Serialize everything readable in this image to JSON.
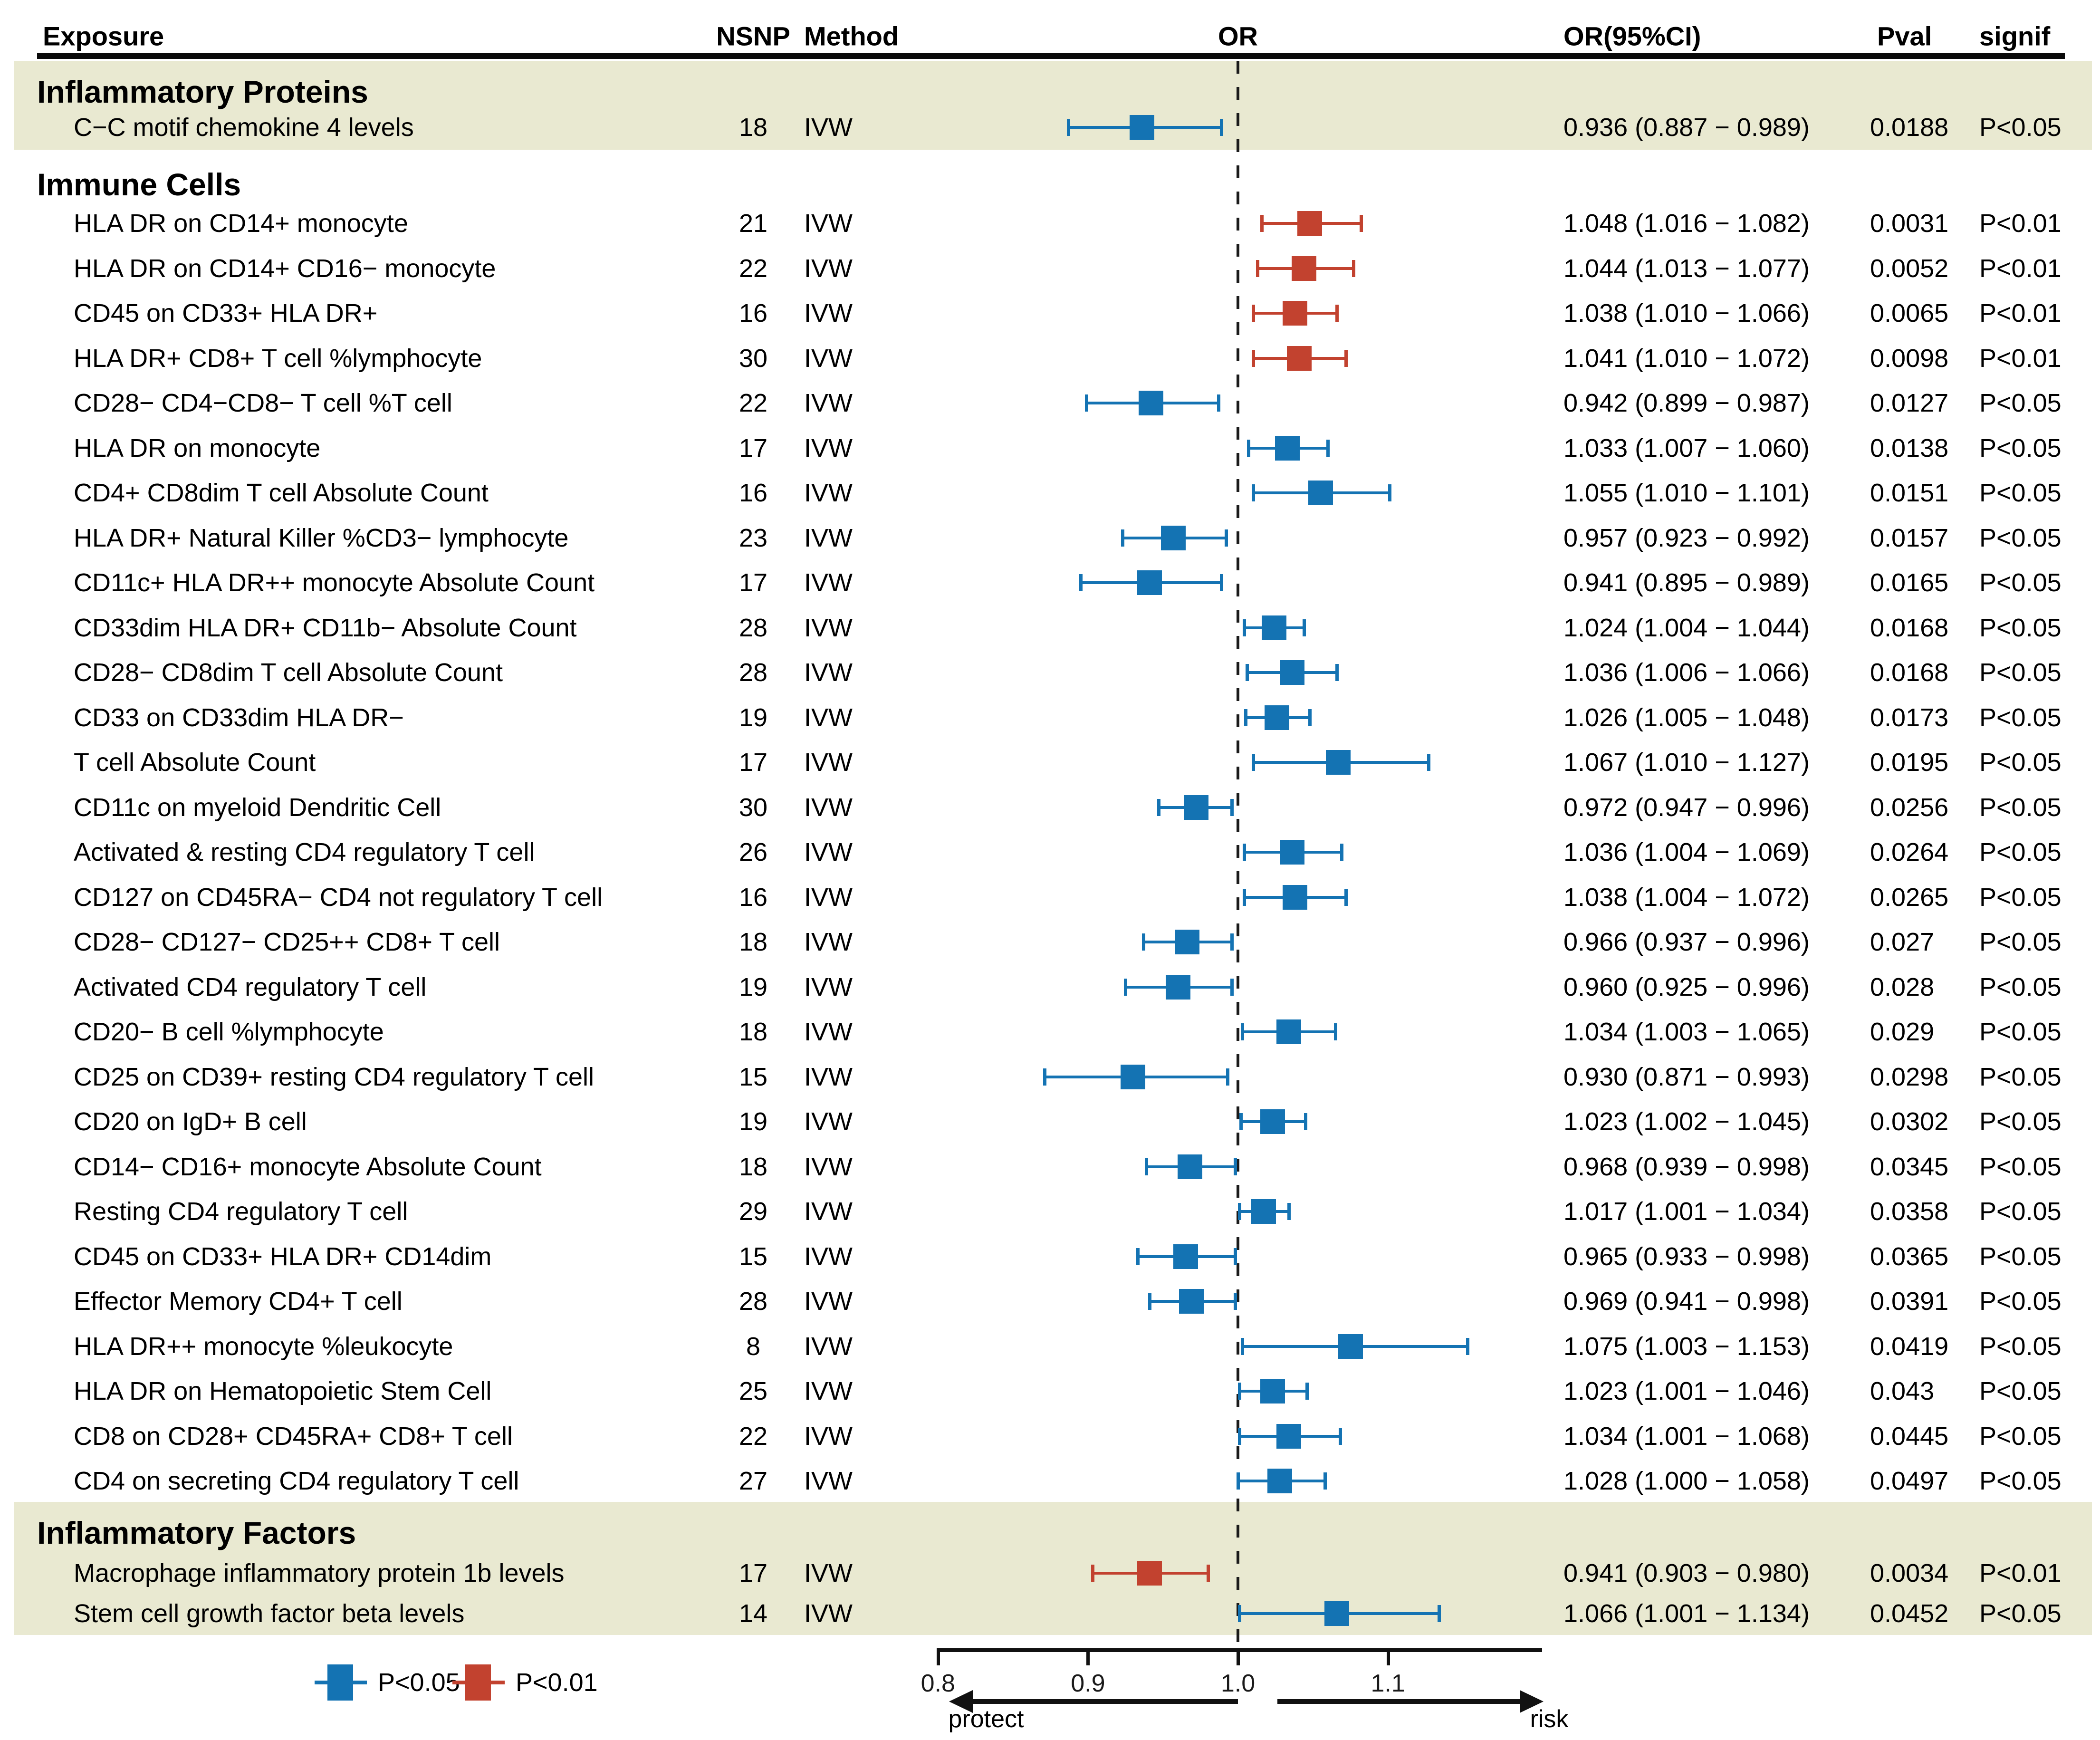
{
  "header": {
    "exposure": "Exposure",
    "nsnp": "NSNP",
    "method": "Method",
    "or": "OR",
    "or_ci": "OR(95%CI)",
    "pval": "Pval",
    "signif": "signif"
  },
  "legend": {
    "items": [
      {
        "label": "P<0.05",
        "color_key": "p05"
      },
      {
        "label": "P<0.01",
        "color_key": "p01"
      }
    ]
  },
  "colors": {
    "band": "#e9e9d1",
    "p05": "#1473b3",
    "p01": "#c2422f",
    "text": "#000000"
  },
  "chart_data": {
    "type": "scatter",
    "variant": "forest-plot",
    "x_axis": {
      "ticks": [
        0.8,
        0.9,
        1.0,
        1.1
      ],
      "tick_labels": [
        "0.8",
        "0.9",
        "1.0",
        "1.1"
      ],
      "reference_line": 1.0,
      "left_label": "protect",
      "right_label": "risk"
    },
    "sections": [
      {
        "title": "Inflammatory Proteins",
        "rows": [
          {
            "exposure": "C−C motif chemokine 4 levels",
            "nsnp": "18",
            "method": "IVW",
            "or": 0.936,
            "ci_low": 0.887,
            "ci_high": 0.989,
            "or_ci": "0.936 (0.887 − 0.989)",
            "pval": "0.0188",
            "signif": "P<0.05",
            "level": "p05"
          }
        ]
      },
      {
        "title": "Immune Cells",
        "rows": [
          {
            "exposure": "HLA DR on CD14+ monocyte",
            "nsnp": "21",
            "method": "IVW",
            "or": 1.048,
            "ci_low": 1.016,
            "ci_high": 1.082,
            "or_ci": "1.048 (1.016 − 1.082)",
            "pval": "0.0031",
            "signif": "P<0.01",
            "level": "p01"
          },
          {
            "exposure": "HLA DR on CD14+ CD16− monocyte",
            "nsnp": "22",
            "method": "IVW",
            "or": 1.044,
            "ci_low": 1.013,
            "ci_high": 1.077,
            "or_ci": "1.044 (1.013 − 1.077)",
            "pval": "0.0052",
            "signif": "P<0.01",
            "level": "p01"
          },
          {
            "exposure": "CD45 on CD33+ HLA DR+",
            "nsnp": "16",
            "method": "IVW",
            "or": 1.038,
            "ci_low": 1.01,
            "ci_high": 1.066,
            "or_ci": "1.038 (1.010 − 1.066)",
            "pval": "0.0065",
            "signif": "P<0.01",
            "level": "p01"
          },
          {
            "exposure": "HLA DR+ CD8+ T cell %lymphocyte",
            "nsnp": "30",
            "method": "IVW",
            "or": 1.041,
            "ci_low": 1.01,
            "ci_high": 1.072,
            "or_ci": "1.041 (1.010 − 1.072)",
            "pval": "0.0098",
            "signif": "P<0.01",
            "level": "p01"
          },
          {
            "exposure": "CD28− CD4−CD8− T cell %T cell",
            "nsnp": "22",
            "method": "IVW",
            "or": 0.942,
            "ci_low": 0.899,
            "ci_high": 0.987,
            "or_ci": "0.942 (0.899 − 0.987)",
            "pval": "0.0127",
            "signif": "P<0.05",
            "level": "p05"
          },
          {
            "exposure": "HLA DR on monocyte",
            "nsnp": "17",
            "method": "IVW",
            "or": 1.033,
            "ci_low": 1.007,
            "ci_high": 1.06,
            "or_ci": "1.033 (1.007 − 1.060)",
            "pval": "0.0138",
            "signif": "P<0.05",
            "level": "p05"
          },
          {
            "exposure": "CD4+ CD8dim T cell Absolute Count",
            "nsnp": "16",
            "method": "IVW",
            "or": 1.055,
            "ci_low": 1.01,
            "ci_high": 1.101,
            "or_ci": "1.055 (1.010 − 1.101)",
            "pval": "0.0151",
            "signif": "P<0.05",
            "level": "p05"
          },
          {
            "exposure": "HLA DR+ Natural Killer %CD3− lymphocyte",
            "nsnp": "23",
            "method": "IVW",
            "or": 0.957,
            "ci_low": 0.923,
            "ci_high": 0.992,
            "or_ci": "0.957 (0.923 − 0.992)",
            "pval": "0.0157",
            "signif": "P<0.05",
            "level": "p05"
          },
          {
            "exposure": "CD11c+ HLA DR++ monocyte Absolute Count",
            "nsnp": "17",
            "method": "IVW",
            "or": 0.941,
            "ci_low": 0.895,
            "ci_high": 0.989,
            "or_ci": "0.941 (0.895 − 0.989)",
            "pval": "0.0165",
            "signif": "P<0.05",
            "level": "p05"
          },
          {
            "exposure": "CD33dim HLA DR+ CD11b− Absolute Count",
            "nsnp": "28",
            "method": "IVW",
            "or": 1.024,
            "ci_low": 1.004,
            "ci_high": 1.044,
            "or_ci": "1.024 (1.004 − 1.044)",
            "pval": "0.0168",
            "signif": "P<0.05",
            "level": "p05"
          },
          {
            "exposure": "CD28− CD8dim T cell Absolute Count",
            "nsnp": "28",
            "method": "IVW",
            "or": 1.036,
            "ci_low": 1.006,
            "ci_high": 1.066,
            "or_ci": "1.036 (1.006 − 1.066)",
            "pval": "0.0168",
            "signif": "P<0.05",
            "level": "p05"
          },
          {
            "exposure": "CD33 on CD33dim HLA DR−",
            "nsnp": "19",
            "method": "IVW",
            "or": 1.026,
            "ci_low": 1.005,
            "ci_high": 1.048,
            "or_ci": "1.026 (1.005 − 1.048)",
            "pval": "0.0173",
            "signif": "P<0.05",
            "level": "p05"
          },
          {
            "exposure": "T cell Absolute Count",
            "nsnp": "17",
            "method": "IVW",
            "or": 1.067,
            "ci_low": 1.01,
            "ci_high": 1.127,
            "or_ci": "1.067 (1.010 − 1.127)",
            "pval": "0.0195",
            "signif": "P<0.05",
            "level": "p05"
          },
          {
            "exposure": "CD11c on myeloid Dendritic Cell",
            "nsnp": "30",
            "method": "IVW",
            "or": 0.972,
            "ci_low": 0.947,
            "ci_high": 0.996,
            "or_ci": "0.972 (0.947 − 0.996)",
            "pval": "0.0256",
            "signif": "P<0.05",
            "level": "p05"
          },
          {
            "exposure": "Activated & resting CD4 regulatory T cell",
            "nsnp": "26",
            "method": "IVW",
            "or": 1.036,
            "ci_low": 1.004,
            "ci_high": 1.069,
            "or_ci": "1.036 (1.004 − 1.069)",
            "pval": "0.0264",
            "signif": "P<0.05",
            "level": "p05"
          },
          {
            "exposure": "CD127 on CD45RA− CD4 not regulatory T cell",
            "nsnp": "16",
            "method": "IVW",
            "or": 1.038,
            "ci_low": 1.004,
            "ci_high": 1.072,
            "or_ci": "1.038 (1.004 − 1.072)",
            "pval": "0.0265",
            "signif": "P<0.05",
            "level": "p05"
          },
          {
            "exposure": "CD28− CD127− CD25++ CD8+ T cell",
            "nsnp": "18",
            "method": "IVW",
            "or": 0.966,
            "ci_low": 0.937,
            "ci_high": 0.996,
            "or_ci": "0.966 (0.937 − 0.996)",
            "pval": "0.027",
            "signif": "P<0.05",
            "level": "p05"
          },
          {
            "exposure": "Activated CD4 regulatory T cell",
            "nsnp": "19",
            "method": "IVW",
            "or": 0.96,
            "ci_low": 0.925,
            "ci_high": 0.996,
            "or_ci": "0.960 (0.925 − 0.996)",
            "pval": "0.028",
            "signif": "P<0.05",
            "level": "p05"
          },
          {
            "exposure": "CD20− B cell %lymphocyte",
            "nsnp": "18",
            "method": "IVW",
            "or": 1.034,
            "ci_low": 1.003,
            "ci_high": 1.065,
            "or_ci": "1.034 (1.003 − 1.065)",
            "pval": "0.029",
            "signif": "P<0.05",
            "level": "p05"
          },
          {
            "exposure": "CD25 on CD39+ resting CD4 regulatory T cell",
            "nsnp": "15",
            "method": "IVW",
            "or": 0.93,
            "ci_low": 0.871,
            "ci_high": 0.993,
            "or_ci": "0.930 (0.871 − 0.993)",
            "pval": "0.0298",
            "signif": "P<0.05",
            "level": "p05"
          },
          {
            "exposure": "CD20 on IgD+ B cell",
            "nsnp": "19",
            "method": "IVW",
            "or": 1.023,
            "ci_low": 1.002,
            "ci_high": 1.045,
            "or_ci": "1.023 (1.002 − 1.045)",
            "pval": "0.0302",
            "signif": "P<0.05",
            "level": "p05"
          },
          {
            "exposure": "CD14− CD16+ monocyte Absolute Count",
            "nsnp": "18",
            "method": "IVW",
            "or": 0.968,
            "ci_low": 0.939,
            "ci_high": 0.998,
            "or_ci": "0.968 (0.939 − 0.998)",
            "pval": "0.0345",
            "signif": "P<0.05",
            "level": "p05"
          },
          {
            "exposure": "Resting CD4 regulatory T cell",
            "nsnp": "29",
            "method": "IVW",
            "or": 1.017,
            "ci_low": 1.001,
            "ci_high": 1.034,
            "or_ci": "1.017 (1.001 − 1.034)",
            "pval": "0.0358",
            "signif": "P<0.05",
            "level": "p05"
          },
          {
            "exposure": "CD45 on CD33+ HLA DR+ CD14dim",
            "nsnp": "15",
            "method": "IVW",
            "or": 0.965,
            "ci_low": 0.933,
            "ci_high": 0.998,
            "or_ci": "0.965 (0.933 − 0.998)",
            "pval": "0.0365",
            "signif": "P<0.05",
            "level": "p05"
          },
          {
            "exposure": "Effector Memory CD4+ T cell",
            "nsnp": "28",
            "method": "IVW",
            "or": 0.969,
            "ci_low": 0.941,
            "ci_high": 0.998,
            "or_ci": "0.969 (0.941 − 0.998)",
            "pval": "0.0391",
            "signif": "P<0.05",
            "level": "p05"
          },
          {
            "exposure": "HLA DR++ monocyte %leukocyte",
            "nsnp": "8",
            "method": "IVW",
            "or": 1.075,
            "ci_low": 1.003,
            "ci_high": 1.153,
            "or_ci": "1.075 (1.003 − 1.153)",
            "pval": "0.0419",
            "signif": "P<0.05",
            "level": "p05"
          },
          {
            "exposure": "HLA DR on Hematopoietic Stem Cell",
            "nsnp": "25",
            "method": "IVW",
            "or": 1.023,
            "ci_low": 1.001,
            "ci_high": 1.046,
            "or_ci": "1.023 (1.001 − 1.046)",
            "pval": "0.043",
            "signif": "P<0.05",
            "level": "p05"
          },
          {
            "exposure": "CD8 on CD28+ CD45RA+ CD8+ T cell",
            "nsnp": "22",
            "method": "IVW",
            "or": 1.034,
            "ci_low": 1.001,
            "ci_high": 1.068,
            "or_ci": "1.034 (1.001 − 1.068)",
            "pval": "0.0445",
            "signif": "P<0.05",
            "level": "p05"
          },
          {
            "exposure": "CD4 on secreting CD4 regulatory T cell",
            "nsnp": "27",
            "method": "IVW",
            "or": 1.028,
            "ci_low": 1.0,
            "ci_high": 1.058,
            "or_ci": "1.028 (1.000 − 1.058)",
            "pval": "0.0497",
            "signif": "P<0.05",
            "level": "p05"
          }
        ]
      },
      {
        "title": "Inflammatory Factors",
        "rows": [
          {
            "exposure": "Macrophage inflammatory protein 1b levels",
            "nsnp": "17",
            "method": "IVW",
            "or": 0.941,
            "ci_low": 0.903,
            "ci_high": 0.98,
            "or_ci": "0.941 (0.903 − 0.980)",
            "pval": "0.0034",
            "signif": "P<0.01",
            "level": "p01"
          },
          {
            "exposure": "Stem cell growth factor beta levels",
            "nsnp": "14",
            "method": "IVW",
            "or": 1.066,
            "ci_low": 1.001,
            "ci_high": 1.134,
            "or_ci": "1.066 (1.001 − 1.134)",
            "pval": "0.0452",
            "signif": "P<0.05",
            "level": "p05"
          }
        ]
      }
    ]
  }
}
